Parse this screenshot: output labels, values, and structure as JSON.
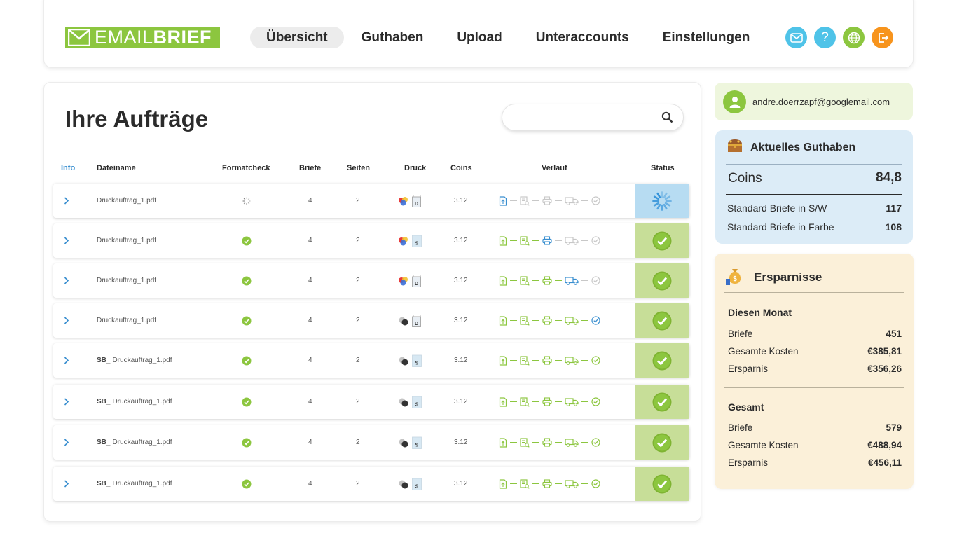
{
  "header": {
    "logo": {
      "light": "EMAIL",
      "bold": "BRIEF"
    },
    "nav": [
      {
        "label": "Übersicht",
        "active": true
      },
      {
        "label": "Guthaben",
        "active": false
      },
      {
        "label": "Upload",
        "active": false
      },
      {
        "label": "Unteraccounts",
        "active": false
      },
      {
        "label": "Einstellungen",
        "active": false
      }
    ],
    "icons": [
      {
        "name": "mail-icon",
        "color": "#4fc3e8"
      },
      {
        "name": "help-icon",
        "color": "#4fc3e8"
      },
      {
        "name": "globe-icon",
        "color": "#8cc63f"
      },
      {
        "name": "logout-icon",
        "color": "#f7941d"
      }
    ]
  },
  "orders": {
    "title": "Ihre Aufträge",
    "search_placeholder": "",
    "columns": {
      "info": "Info",
      "file": "Dateiname",
      "formatcheck": "Formatcheck",
      "letters": "Briefe",
      "pages": "Seiten",
      "print": "Druck",
      "coins": "Coins",
      "history": "Verlauf",
      "status": "Status"
    },
    "rows": [
      {
        "prefix": "",
        "file": "Druckauftrag_1.pdf",
        "formatcheck": "loading",
        "letters": "4",
        "pages": "2",
        "color": "color",
        "side": "D",
        "coins": "3.12",
        "progress": 1,
        "status": "loading"
      },
      {
        "prefix": "",
        "file": "Druckauftrag_1.pdf",
        "formatcheck": "ok",
        "letters": "4",
        "pages": "2",
        "color": "color",
        "side": "S",
        "coins": "3.12",
        "progress": 3,
        "status": "ok"
      },
      {
        "prefix": "",
        "file": "Druckauftrag_1.pdf",
        "formatcheck": "ok",
        "letters": "4",
        "pages": "2",
        "color": "color",
        "side": "D",
        "coins": "3.12",
        "progress": 4,
        "status": "ok"
      },
      {
        "prefix": "",
        "file": "Druckauftrag_1.pdf",
        "formatcheck": "ok",
        "letters": "4",
        "pages": "2",
        "color": "bw",
        "side": "D",
        "coins": "3.12",
        "progress": 5,
        "status": "ok"
      },
      {
        "prefix": "SB_",
        "file": "Druckauftrag_1.pdf",
        "formatcheck": "ok",
        "letters": "4",
        "pages": "2",
        "color": "bw",
        "side": "S",
        "coins": "3.12",
        "progress": 6,
        "status": "ok"
      },
      {
        "prefix": "SB_",
        "file": "Druckauftrag_1.pdf",
        "formatcheck": "ok",
        "letters": "4",
        "pages": "2",
        "color": "bw",
        "side": "S",
        "coins": "3.12",
        "progress": 6,
        "status": "ok"
      },
      {
        "prefix": "SB_",
        "file": "Druckauftrag_1.pdf",
        "formatcheck": "ok",
        "letters": "4",
        "pages": "2",
        "color": "bw",
        "side": "S",
        "coins": "3.12",
        "progress": 6,
        "status": "ok"
      },
      {
        "prefix": "SB_",
        "file": "Druckauftrag_1.pdf",
        "formatcheck": "ok",
        "letters": "4",
        "pages": "2",
        "color": "bw",
        "side": "S",
        "coins": "3.12",
        "progress": 6,
        "status": "ok"
      }
    ]
  },
  "user": {
    "email": "andre.doerrzapf@googlemail.com"
  },
  "credit": {
    "title": "Aktuelles Guthaben",
    "coins_label": "Coins",
    "coins_value": "84,8",
    "sw_label": "Standard Briefe in S/W",
    "sw_value": "117",
    "color_label": "Standard Briefe in Farbe",
    "color_value": "108"
  },
  "savings": {
    "title": "Ersparnisse",
    "month": {
      "title": "Diesen Monat",
      "letters_label": "Briefe",
      "letters": "451",
      "cost_label": "Gesamte Kosten",
      "cost": "€385,81",
      "saving_label": "Ersparnis",
      "saving": "€356,26"
    },
    "total": {
      "title": "Gesamt",
      "letters_label": "Briefe",
      "letters": "579",
      "cost_label": "Gesamte Kosten",
      "cost": "€488,94",
      "saving_label": "Ersparnis",
      "saving": "€456,11"
    }
  },
  "colors": {
    "green": "#8cc63f",
    "status_green": "#c7de98",
    "status_blue": "#b7dcf2",
    "blue": "#3a8fd0",
    "grey": "#c8c8c8"
  }
}
